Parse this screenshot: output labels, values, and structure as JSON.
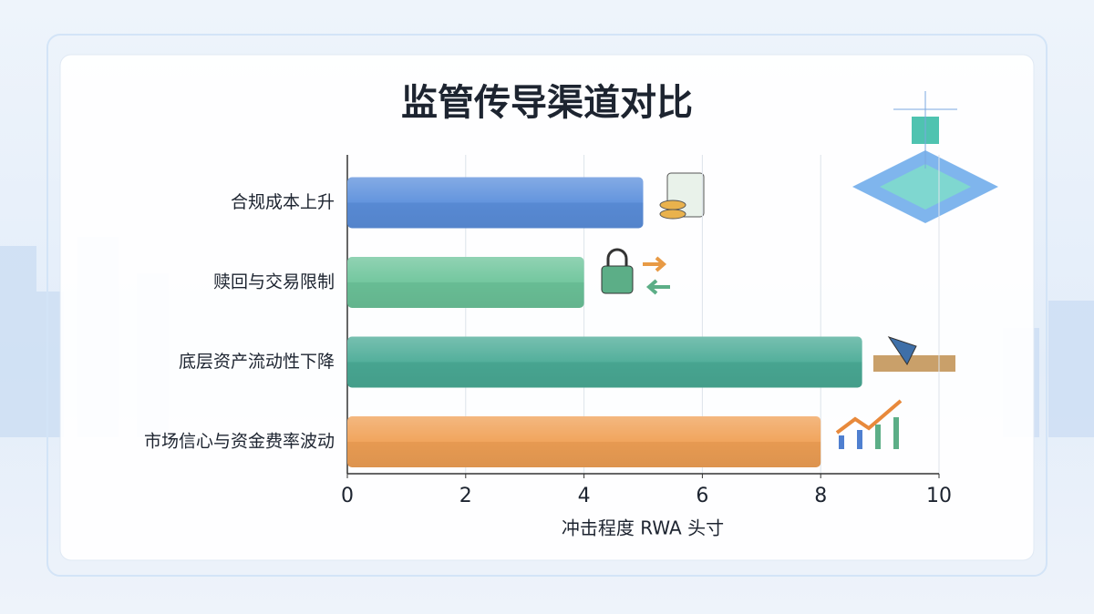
{
  "chart_data": {
    "type": "barh",
    "title": "监管传导渠道对比",
    "categories": [
      "合规成本上升",
      "赎回与交易限制",
      "底层资产流动性下降",
      "市场信心与资金费率波动"
    ],
    "values": [
      5.0,
      4.0,
      8.7,
      8.0
    ],
    "colors": [
      "#5b8fdc",
      "#6cc49a",
      "#4aab96",
      "#f0a055"
    ],
    "xlabel": "冲击程度 RWA 头寸",
    "xlim": [
      0,
      10
    ],
    "xticks": [
      0,
      2,
      4,
      6,
      8,
      10
    ],
    "grid": true
  }
}
